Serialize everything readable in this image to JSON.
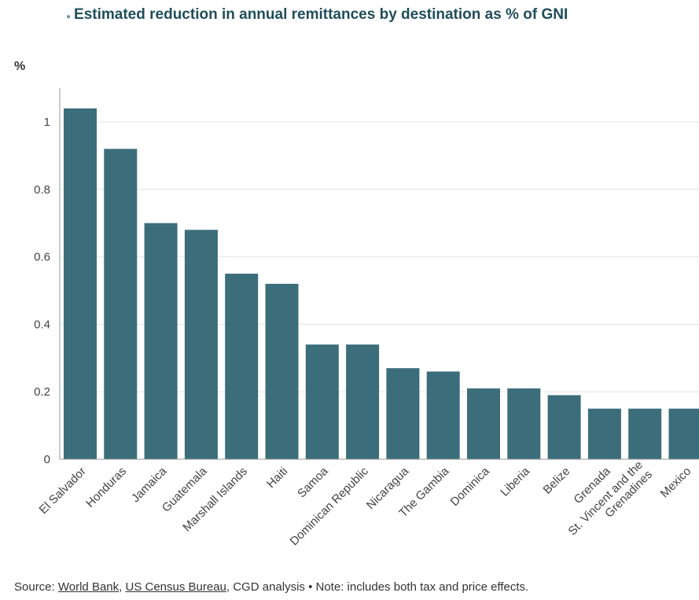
{
  "chart_data": {
    "type": "bar",
    "title": "Estimated reduction in annual remittances by destination as % of GNI",
    "ylabel": "%",
    "xlabel": "",
    "ylim": [
      0,
      1.1
    ],
    "yticks": [
      0,
      0.2,
      0.4,
      0.6,
      0.8,
      1
    ],
    "grid": true,
    "bar_color": "#3b6e7a",
    "categories": [
      "El Salvador",
      "Honduras",
      "Jamaica",
      "Guatemala",
      "Marshall Islands",
      "Haiti",
      "Samoa",
      "Dominican Republic",
      "Nicaragua",
      "The Gambia",
      "Dominica",
      "Liberia",
      "Belize",
      "Grenada",
      [
        "St. Vincent and the",
        "Grenadines"
      ],
      "Mexico"
    ],
    "values": [
      1.04,
      0.92,
      0.7,
      0.68,
      0.55,
      0.52,
      0.34,
      0.34,
      0.27,
      0.26,
      0.21,
      0.21,
      0.19,
      0.15,
      0.15,
      0.15
    ]
  },
  "footer": {
    "prefix": "Source: ",
    "link1": "World Bank",
    "sep1": ", ",
    "link2": "US Census Bureau",
    "suffix": ", CGD analysis • Note: includes both tax and price effects."
  }
}
